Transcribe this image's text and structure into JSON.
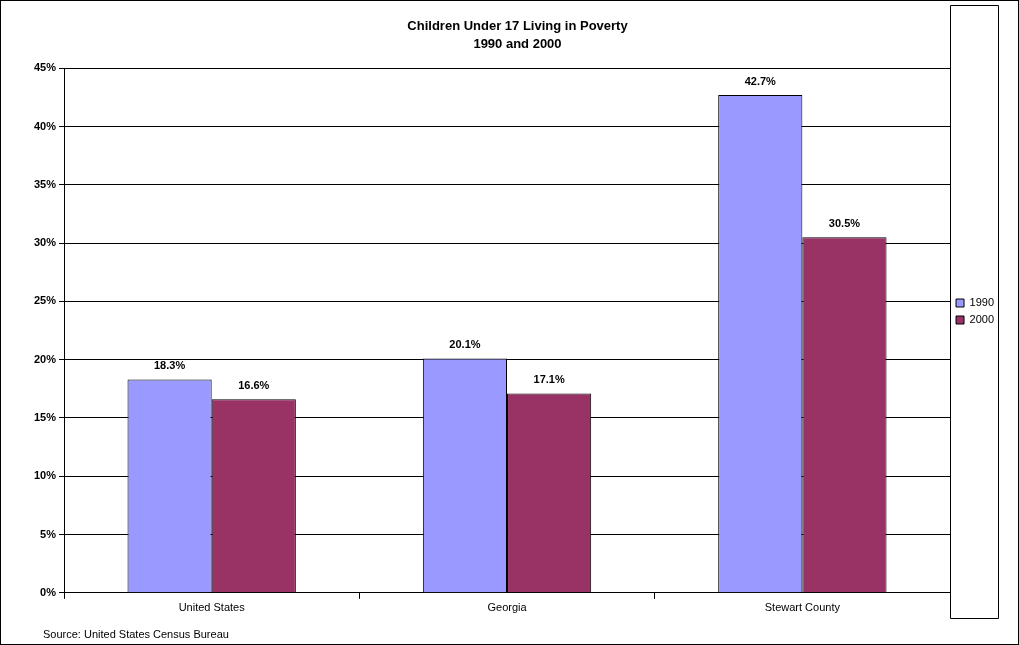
{
  "chart_data": {
    "type": "bar",
    "title": "Children Under 17 Living in Poverty",
    "subtitle": "1990 and 2000",
    "categories": [
      "United States",
      "Georgia",
      "Stewart County"
    ],
    "series": [
      {
        "name": "1990",
        "color": "#9999ff",
        "values": [
          18.3,
          20.1,
          42.7
        ],
        "value_labels": [
          "18.3%",
          "20.1%",
          "42.7%"
        ]
      },
      {
        "name": "2000",
        "color": "#993366",
        "values": [
          16.6,
          17.1,
          30.5
        ],
        "value_labels": [
          "16.6%",
          "17.1%",
          "30.5%"
        ]
      }
    ],
    "ylim": [
      0,
      45
    ],
    "yticks": [
      {
        "value": 0,
        "label": "0%"
      },
      {
        "value": 5,
        "label": "5%"
      },
      {
        "value": 10,
        "label": "10%"
      },
      {
        "value": 15,
        "label": "15%"
      },
      {
        "value": 20,
        "label": "20%"
      },
      {
        "value": 25,
        "label": "25%"
      },
      {
        "value": 30,
        "label": "30%"
      },
      {
        "value": 35,
        "label": "35%"
      },
      {
        "value": 40,
        "label": "40%"
      },
      {
        "value": 45,
        "label": "45%"
      }
    ],
    "grid": "y",
    "legend": "right",
    "annotations": [
      "Source: United States Census Bureau"
    ]
  }
}
